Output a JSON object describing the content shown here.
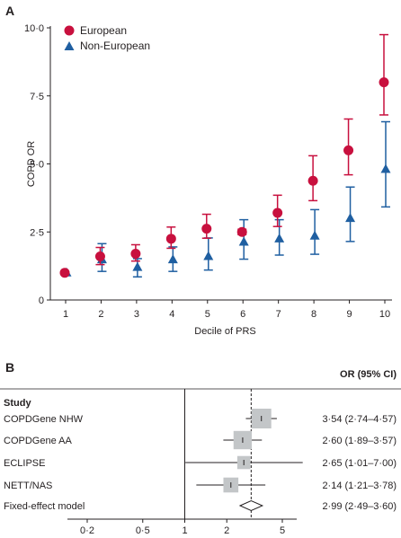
{
  "panels": {
    "a_label": "A",
    "b_label": "B"
  },
  "chart_data": [
    {
      "type": "scatter",
      "panel": "A",
      "xlabel": "Decile of PRS",
      "ylabel": "COPD OR",
      "x": [
        1,
        2,
        3,
        4,
        5,
        6,
        7,
        8,
        9,
        10
      ],
      "x_tick_labels": [
        "1",
        "2",
        "3",
        "4",
        "5",
        "6",
        "7",
        "8",
        "9",
        "10"
      ],
      "ylim": [
        0,
        10
      ],
      "y_ticks": [
        0,
        2.5,
        5,
        7.5,
        10
      ],
      "y_tick_labels": [
        "0",
        "2·5",
        "5·0",
        "7·5",
        "10·0"
      ],
      "grid": false,
      "legend_position": "top-left",
      "series": [
        {
          "name": "European",
          "marker": "circle",
          "color": "#c8103e",
          "values": [
            1.0,
            1.6,
            1.7,
            2.25,
            2.62,
            2.5,
            3.2,
            4.38,
            5.5,
            8.0
          ],
          "ci_low": [
            1.0,
            1.3,
            1.43,
            1.9,
            2.27,
            2.4,
            2.7,
            3.65,
            4.6,
            6.8
          ],
          "ci_high": [
            1.0,
            1.93,
            2.03,
            2.68,
            3.15,
            2.6,
            3.85,
            5.3,
            6.65,
            9.75
          ]
        },
        {
          "name": "Non-European",
          "marker": "triangle",
          "color": "#1f5fa1",
          "values": [
            1.0,
            1.48,
            1.2,
            1.48,
            1.6,
            2.13,
            2.25,
            2.35,
            3.0,
            4.8
          ],
          "ci_low": [
            1.0,
            1.05,
            0.85,
            1.05,
            1.1,
            1.5,
            1.65,
            1.68,
            2.15,
            3.42
          ],
          "ci_high": [
            1.0,
            2.07,
            1.52,
            1.95,
            2.28,
            2.95,
            2.95,
            3.32,
            4.15,
            6.55
          ]
        }
      ]
    },
    {
      "type": "forest",
      "panel": "B",
      "column_header": "OR (95% CI)",
      "row_header": "Study",
      "x_scale": "log",
      "xlim": [
        0.2,
        5
      ],
      "x_ticks": [
        0.2,
        0.5,
        1,
        2,
        5
      ],
      "x_tick_labels": [
        "0·2",
        "0·5",
        "1",
        "2",
        "5"
      ],
      "null_value": 1,
      "pooled_value": 2.99,
      "rows": [
        {
          "study": "COPDGene NHW",
          "or": 3.54,
          "low": 2.74,
          "high": 4.57,
          "label": "3·54 (2·74–4·57)",
          "weight": 1.0
        },
        {
          "study": "COPDGene AA",
          "or": 2.6,
          "low": 1.89,
          "high": 3.57,
          "label": "2·60 (1·89–3·57)",
          "weight": 0.78
        },
        {
          "study": "ECLIPSE",
          "or": 2.65,
          "low": 1.01,
          "high": 7.0,
          "label": "2·65 (1·01–7·00)",
          "weight": 0.22
        },
        {
          "study": "NETT/NAS",
          "or": 2.14,
          "low": 1.21,
          "high": 3.78,
          "label": "2·14 (1·21–3·78)",
          "weight": 0.38
        }
      ],
      "pooled": {
        "study": "Fixed-effect model",
        "or": 2.99,
        "low": 2.49,
        "high": 3.6,
        "label": "2·99 (2·49–3·60)"
      }
    }
  ]
}
